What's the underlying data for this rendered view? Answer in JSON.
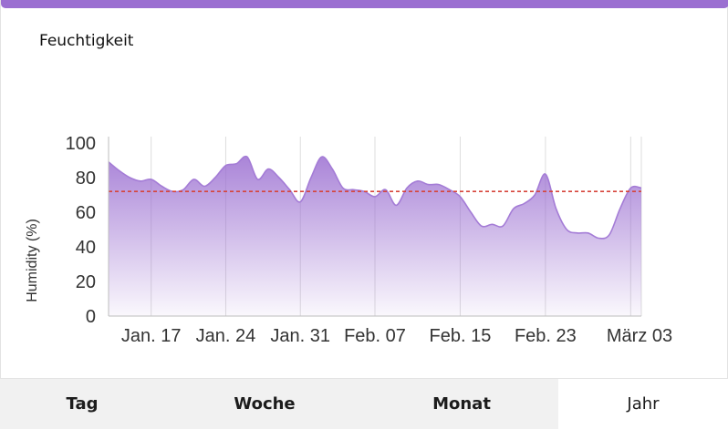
{
  "card": {
    "title": "Feuchtigkeit",
    "accent_color": "#9b6fd1"
  },
  "tabs": [
    {
      "label": "Tag",
      "active": false
    },
    {
      "label": "Woche",
      "active": false
    },
    {
      "label": "Monat",
      "active": false
    },
    {
      "label": "Jahr",
      "active": true
    }
  ],
  "chart_data": {
    "type": "area",
    "ylabel": "Humidity (%)",
    "xlabel": "",
    "ylim": [
      0,
      100
    ],
    "y_ticks": [
      0,
      20,
      40,
      60,
      80,
      100
    ],
    "x_ticks": [
      "Jan. 17",
      "Jan. 24",
      "Jan. 31",
      "Feb. 07",
      "Feb. 15",
      "Feb. 23",
      "März 03"
    ],
    "x_tick_index": [
      4,
      11,
      18,
      25,
      33,
      41,
      49
    ],
    "grid": {
      "vertical": true,
      "horizontal": false
    },
    "reference_line": {
      "value": 72,
      "style": "dashed",
      "color": "#d6453b"
    },
    "fill_color": "#9b6fd1",
    "line_color": "#a47cd6",
    "series": [
      {
        "values": [
          89,
          84,
          80,
          78,
          79,
          75,
          72,
          73,
          79,
          75,
          80,
          87,
          88,
          92,
          79,
          85,
          80,
          73,
          66,
          80,
          92,
          85,
          74,
          73,
          72,
          69,
          73,
          64,
          74,
          78,
          76,
          76,
          73,
          69,
          60,
          52,
          53,
          52,
          62,
          65,
          70,
          82,
          62,
          50,
          48,
          48,
          45,
          47,
          62,
          74,
          74
        ]
      }
    ]
  }
}
